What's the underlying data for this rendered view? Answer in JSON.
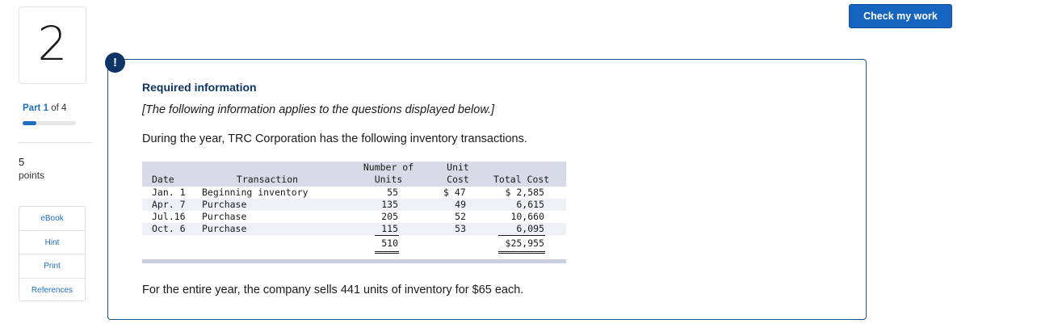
{
  "question": {
    "number": "2"
  },
  "part": {
    "word": "Part",
    "current": "1",
    "of_text": "of 4",
    "progress_fraction": 0.25
  },
  "points": {
    "value": "5",
    "label": "points"
  },
  "resources": [
    "eBook",
    "Hint",
    "Print",
    "References"
  ],
  "check_button": "Check my work",
  "alert_icon": "!",
  "info": {
    "title": "Required information",
    "applies_text": "[The following information applies to the questions displayed below.]",
    "intro": "During the year, TRC Corporation has the following inventory transactions.",
    "closing": "For the entire year, the company sells 441 units of inventory for $65 each."
  },
  "table": {
    "headers": {
      "date": "Date",
      "transaction": "Transaction",
      "units_line1": "Number of",
      "units_line2": "Units",
      "cost_line1": "Unit",
      "cost_line2": "Cost",
      "total": "Total Cost"
    },
    "rows": [
      {
        "date": "Jan. 1",
        "transaction": "Beginning inventory",
        "units": "55",
        "unit_cost": "$ 47",
        "total": "$ 2,585"
      },
      {
        "date": "Apr. 7",
        "transaction": "Purchase",
        "units": "135",
        "unit_cost": "49",
        "total": "6,615"
      },
      {
        "date": "Jul.16",
        "transaction": "Purchase",
        "units": "205",
        "unit_cost": "52",
        "total": "10,660"
      },
      {
        "date": "Oct. 6",
        "transaction": "Purchase",
        "units": "115",
        "unit_cost": "53",
        "total": "6,095"
      }
    ],
    "totals": {
      "units": "510",
      "total": "$25,955"
    }
  }
}
